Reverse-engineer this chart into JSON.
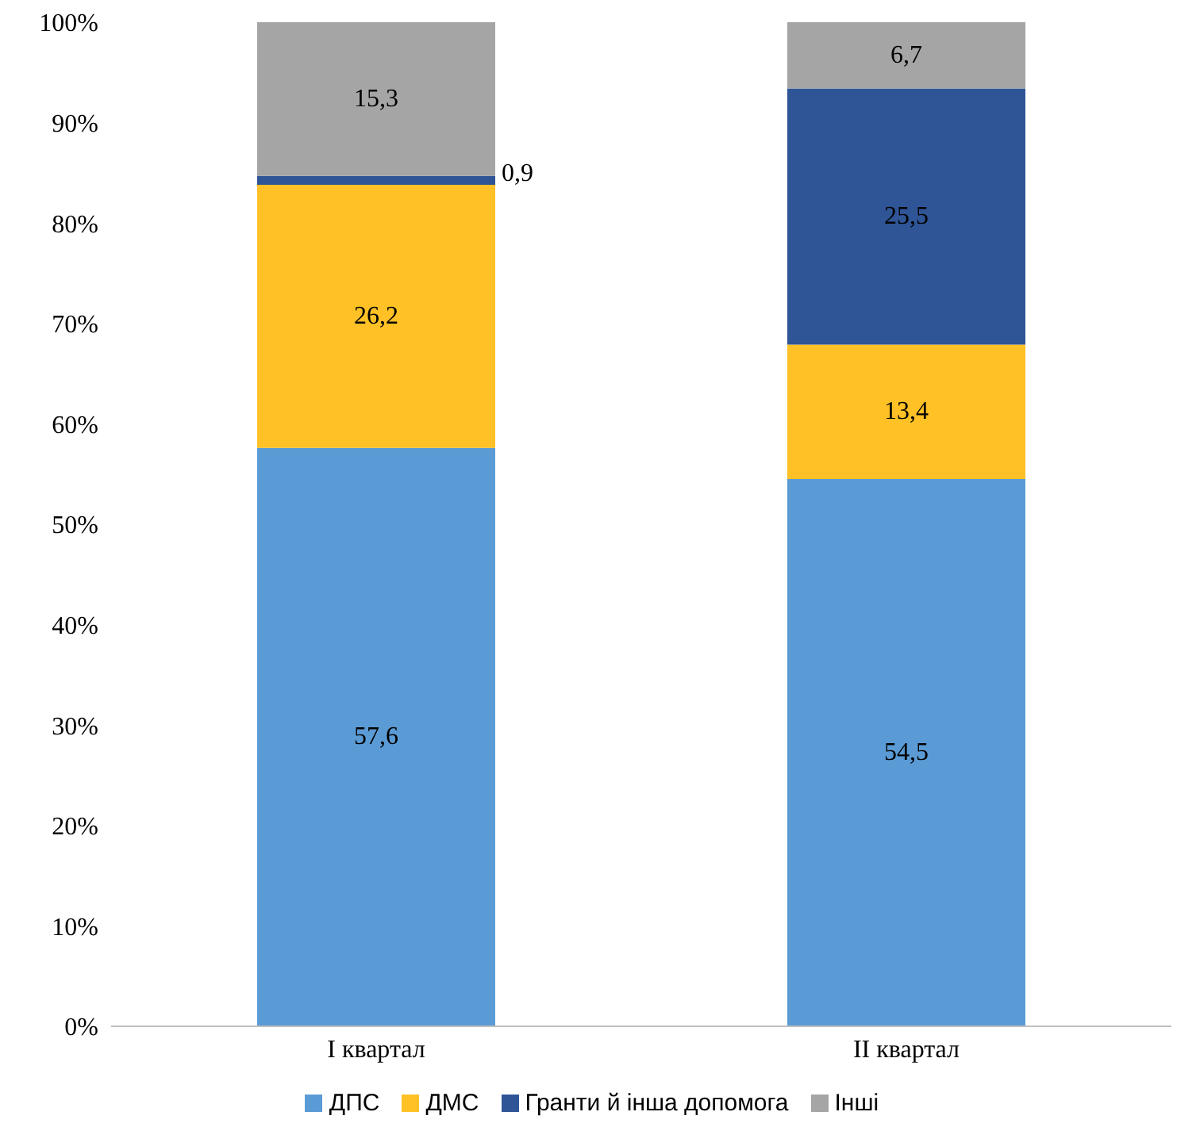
{
  "chart_data": {
    "type": "bar",
    "stacked": true,
    "categories": [
      "I квартал",
      "II квартал"
    ],
    "series": [
      {
        "name": "ДПС",
        "color": "#5b9bd5",
        "values": [
          57.6,
          54.5
        ],
        "value_labels": [
          "57,6",
          "54,5"
        ]
      },
      {
        "name": "ДМС",
        "color": "#ffc125",
        "values": [
          26.2,
          13.4
        ],
        "value_labels": [
          "26,2",
          "13,4"
        ]
      },
      {
        "name": "Гранти й інша допомога",
        "color": "#2f5597",
        "values": [
          0.9,
          25.5
        ],
        "value_labels": [
          "0,9",
          "25,5"
        ]
      },
      {
        "name": "Інші",
        "color": "#a5a5a5",
        "values": [
          15.3,
          6.7
        ],
        "value_labels": [
          "15,3",
          "6,7"
        ]
      }
    ],
    "ylim": [
      0,
      100
    ],
    "yticks": [
      {
        "value": 0,
        "label": "0%"
      },
      {
        "value": 10,
        "label": "10%"
      },
      {
        "value": 20,
        "label": "20%"
      },
      {
        "value": 30,
        "label": "30%"
      },
      {
        "value": 40,
        "label": "40%"
      },
      {
        "value": 50,
        "label": "50%"
      },
      {
        "value": 60,
        "label": "60%"
      },
      {
        "value": 70,
        "label": "70%"
      },
      {
        "value": 80,
        "label": "80%"
      },
      {
        "value": 90,
        "label": "90%"
      },
      {
        "value": 100,
        "label": "100%"
      }
    ],
    "legend": "bottom",
    "grid": false
  }
}
